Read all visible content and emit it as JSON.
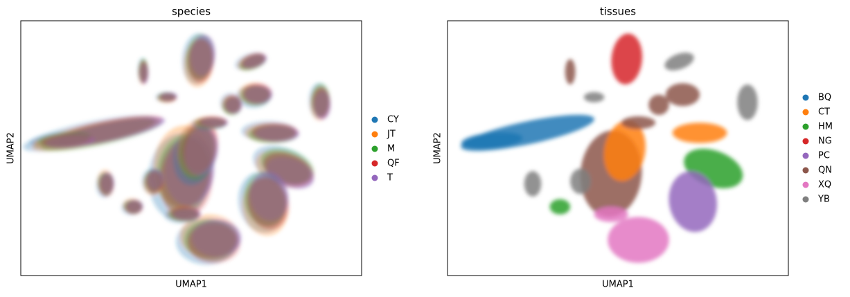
{
  "chart_data": [
    {
      "type": "scatter",
      "title": "species",
      "xlabel": "UMAP1",
      "ylabel": "UMAP2",
      "series": [
        {
          "name": "CY",
          "color": "#1f77b4"
        },
        {
          "name": "JT",
          "color": "#ff7f0e"
        },
        {
          "name": "M",
          "color": "#2ca02c"
        },
        {
          "name": "QF",
          "color": "#d62728"
        },
        {
          "name": "T",
          "color": "#9467bd"
        }
      ]
    },
    {
      "type": "scatter",
      "title": "tissues",
      "xlabel": "UMAP1",
      "ylabel": "UMAP2",
      "series": [
        {
          "name": "BQ",
          "color": "#1f77b4"
        },
        {
          "name": "CT",
          "color": "#ff7f0e"
        },
        {
          "name": "HM",
          "color": "#2ca02c"
        },
        {
          "name": "NG",
          "color": "#d62728"
        },
        {
          "name": "PC",
          "color": "#9467bd"
        },
        {
          "name": "QN",
          "color": "#8c564b"
        },
        {
          "name": "XQ",
          "color": "#e377c2"
        },
        {
          "name": "YB",
          "color": "#7f7f7f"
        }
      ]
    }
  ]
}
